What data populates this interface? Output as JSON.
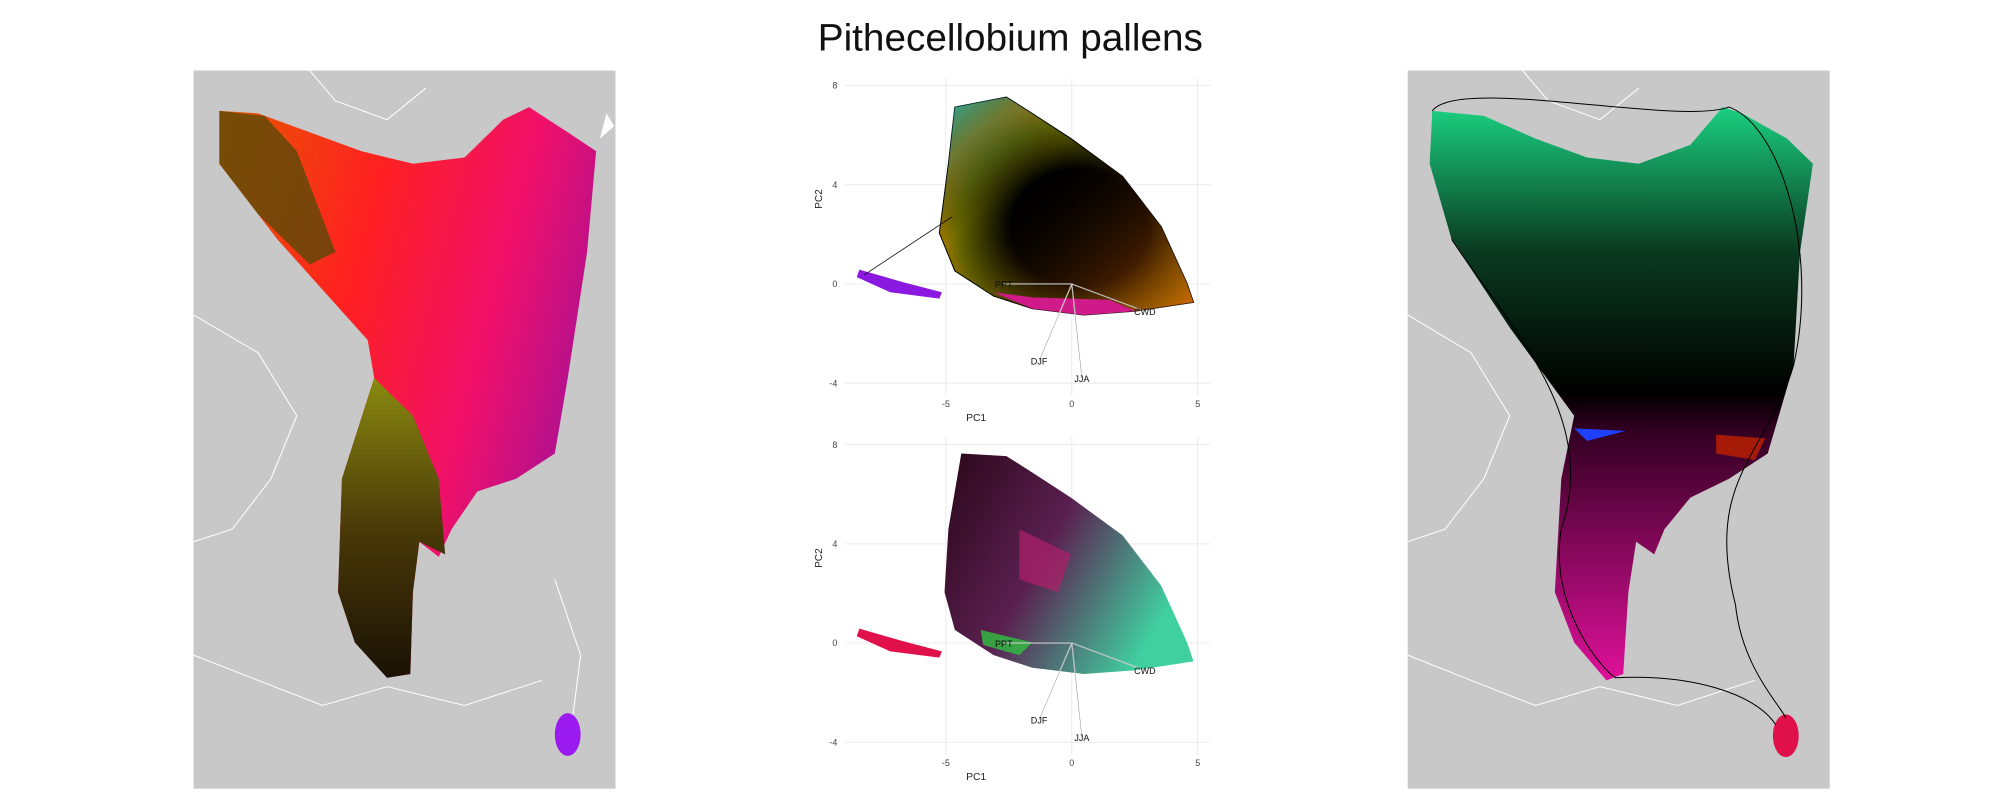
{
  "title": "Pithecellobium pallens",
  "chart_data": [
    {
      "type": "scatter",
      "xlabel": "PC1",
      "ylabel": "PC2",
      "xlim": [
        -9,
        5.5
      ],
      "ylim": [
        -4.5,
        8.3
      ],
      "xticks": [
        -5,
        0,
        5
      ],
      "yticks": [
        -4,
        0,
        4,
        8
      ],
      "grid": true,
      "annotations": [
        {
          "text": "PPT",
          "x": -2.7,
          "y": 0
        },
        {
          "text": "CWD",
          "x": 2.9,
          "y": -1.1
        },
        {
          "text": "DJF",
          "x": -1.3,
          "y": -3.1
        },
        {
          "text": "JJA",
          "x": 0.4,
          "y": -3.8
        }
      ]
    },
    {
      "type": "scatter",
      "xlabel": "PC1",
      "ylabel": "PC2",
      "xlim": [
        -9,
        5.5
      ],
      "ylim": [
        -4.5,
        8.3
      ],
      "xticks": [
        -5,
        0,
        5
      ],
      "yticks": [
        -4,
        0,
        4,
        8
      ],
      "grid": true,
      "annotations": [
        {
          "text": "PPT",
          "x": -2.7,
          "y": 0
        },
        {
          "text": "CWD",
          "x": 2.9,
          "y": -1.1
        },
        {
          "text": "DJF",
          "x": -1.3,
          "y": -3.1
        },
        {
          "text": "JJA",
          "x": 0.4,
          "y": -3.8
        }
      ]
    }
  ]
}
